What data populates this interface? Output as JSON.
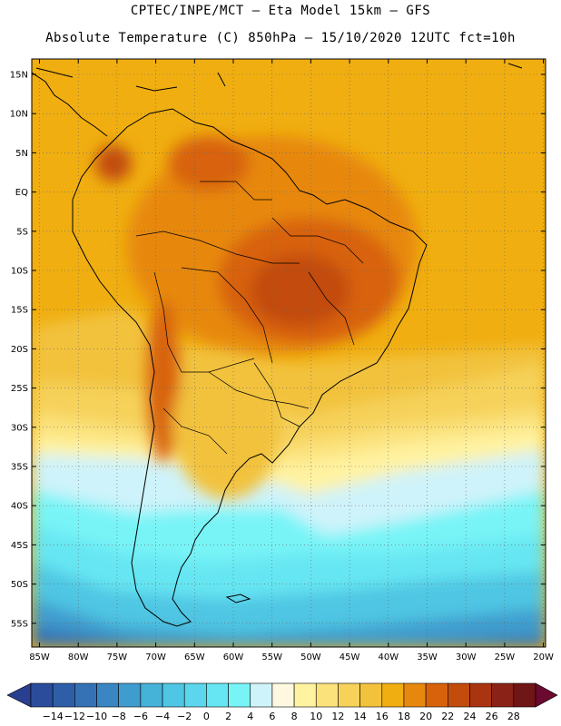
{
  "title_line1": "CPTEC/INPE/MCT –  Eta Model 15km – GFS",
  "title_line2": "Absolute Temperature (C) 850hPa – 15/10/2020 12UTC fct=10h",
  "lat_labels": [
    "15N",
    "10N",
    "5N",
    "EQ",
    "5S",
    "10S",
    "15S",
    "20S",
    "25S",
    "30S",
    "35S",
    "40S",
    "45S",
    "50S",
    "55S"
  ],
  "lon_labels": [
    "85W",
    "80W",
    "75W",
    "70W",
    "65W",
    "60W",
    "55W",
    "50W",
    "45W",
    "40W",
    "35W",
    "30W",
    "25W",
    "20W"
  ],
  "colorbar": {
    "labels": [
      "-14",
      "-12",
      "-10",
      "-8",
      "-6",
      "-4",
      "-2",
      "0",
      "2",
      "4",
      "6",
      "8",
      "10",
      "12",
      "14",
      "16",
      "18",
      "20",
      "22",
      "24",
      "26",
      "28"
    ],
    "colors": [
      "#2a4c9a",
      "#2e5ea8",
      "#3572b5",
      "#3a86c2",
      "#3f9cce",
      "#45b2d8",
      "#4fc6e3",
      "#5bd6ec",
      "#66e6f2",
      "#78f4f7",
      "#cff3fa",
      "#fff8e0",
      "#fff2a0",
      "#fbe27b",
      "#f6d25a",
      "#f2c23c",
      "#f0ae10",
      "#e7880e",
      "#d8620c",
      "#c24c0c",
      "#a83410",
      "#8a2218",
      "#701616"
    ],
    "left_end_color": "#2a3f8f",
    "right_end_color": "#6a0a2e"
  }
}
